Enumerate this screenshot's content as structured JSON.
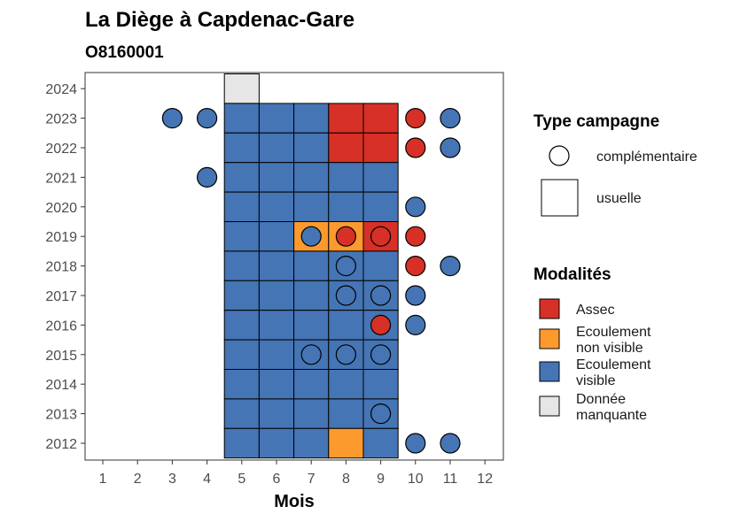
{
  "chart_data": {
    "type": "heatmap",
    "title": "La Diège à Capdenac-Gare",
    "subtitle": "O8160001",
    "xlabel": "Mois",
    "ylabel": "",
    "x_ticks": [
      "1",
      "2",
      "3",
      "4",
      "5",
      "6",
      "7",
      "8",
      "9",
      "10",
      "11",
      "12"
    ],
    "y_ticks": [
      "2012",
      "2013",
      "2014",
      "2015",
      "2016",
      "2017",
      "2018",
      "2019",
      "2020",
      "2021",
      "2022",
      "2023",
      "2024"
    ],
    "xlim": [
      1,
      12
    ],
    "ylim": [
      2012,
      2024
    ],
    "grid": false,
    "colors": {
      "assec": "#d73027",
      "non_visible": "#fd9a2e",
      "visible": "#4575b4",
      "missing": "#e6e6e6"
    },
    "tiles": [
      {
        "year": 2024,
        "month": 5,
        "mod": "missing"
      },
      {
        "year": 2023,
        "month": 5,
        "mod": "visible"
      },
      {
        "year": 2023,
        "month": 6,
        "mod": "visible"
      },
      {
        "year": 2023,
        "month": 7,
        "mod": "visible"
      },
      {
        "year": 2023,
        "month": 8,
        "mod": "assec"
      },
      {
        "year": 2023,
        "month": 9,
        "mod": "assec"
      },
      {
        "year": 2022,
        "month": 5,
        "mod": "visible"
      },
      {
        "year": 2022,
        "month": 6,
        "mod": "visible"
      },
      {
        "year": 2022,
        "month": 7,
        "mod": "visible"
      },
      {
        "year": 2022,
        "month": 8,
        "mod": "assec"
      },
      {
        "year": 2022,
        "month": 9,
        "mod": "assec"
      },
      {
        "year": 2021,
        "month": 5,
        "mod": "visible"
      },
      {
        "year": 2021,
        "month": 6,
        "mod": "visible"
      },
      {
        "year": 2021,
        "month": 7,
        "mod": "visible"
      },
      {
        "year": 2021,
        "month": 8,
        "mod": "visible"
      },
      {
        "year": 2021,
        "month": 9,
        "mod": "visible"
      },
      {
        "year": 2020,
        "month": 5,
        "mod": "visible"
      },
      {
        "year": 2020,
        "month": 6,
        "mod": "visible"
      },
      {
        "year": 2020,
        "month": 7,
        "mod": "visible"
      },
      {
        "year": 2020,
        "month": 8,
        "mod": "visible"
      },
      {
        "year": 2020,
        "month": 9,
        "mod": "visible"
      },
      {
        "year": 2019,
        "month": 5,
        "mod": "visible"
      },
      {
        "year": 2019,
        "month": 6,
        "mod": "visible"
      },
      {
        "year": 2019,
        "month": 7,
        "mod": "non_visible"
      },
      {
        "year": 2019,
        "month": 8,
        "mod": "non_visible"
      },
      {
        "year": 2019,
        "month": 9,
        "mod": "assec"
      },
      {
        "year": 2018,
        "month": 5,
        "mod": "visible"
      },
      {
        "year": 2018,
        "month": 6,
        "mod": "visible"
      },
      {
        "year": 2018,
        "month": 7,
        "mod": "visible"
      },
      {
        "year": 2018,
        "month": 8,
        "mod": "visible"
      },
      {
        "year": 2018,
        "month": 9,
        "mod": "visible"
      },
      {
        "year": 2017,
        "month": 5,
        "mod": "visible"
      },
      {
        "year": 2017,
        "month": 6,
        "mod": "visible"
      },
      {
        "year": 2017,
        "month": 7,
        "mod": "visible"
      },
      {
        "year": 2017,
        "month": 8,
        "mod": "visible"
      },
      {
        "year": 2017,
        "month": 9,
        "mod": "visible"
      },
      {
        "year": 2016,
        "month": 5,
        "mod": "visible"
      },
      {
        "year": 2016,
        "month": 6,
        "mod": "visible"
      },
      {
        "year": 2016,
        "month": 7,
        "mod": "visible"
      },
      {
        "year": 2016,
        "month": 8,
        "mod": "visible"
      },
      {
        "year": 2016,
        "month": 9,
        "mod": "visible"
      },
      {
        "year": 2015,
        "month": 5,
        "mod": "visible"
      },
      {
        "year": 2015,
        "month": 6,
        "mod": "visible"
      },
      {
        "year": 2015,
        "month": 7,
        "mod": "visible"
      },
      {
        "year": 2015,
        "month": 8,
        "mod": "visible"
      },
      {
        "year": 2015,
        "month": 9,
        "mod": "visible"
      },
      {
        "year": 2014,
        "month": 5,
        "mod": "visible"
      },
      {
        "year": 2014,
        "month": 6,
        "mod": "visible"
      },
      {
        "year": 2014,
        "month": 7,
        "mod": "visible"
      },
      {
        "year": 2014,
        "month": 8,
        "mod": "visible"
      },
      {
        "year": 2014,
        "month": 9,
        "mod": "visible"
      },
      {
        "year": 2013,
        "month": 5,
        "mod": "visible"
      },
      {
        "year": 2013,
        "month": 6,
        "mod": "visible"
      },
      {
        "year": 2013,
        "month": 7,
        "mod": "visible"
      },
      {
        "year": 2013,
        "month": 8,
        "mod": "visible"
      },
      {
        "year": 2013,
        "month": 9,
        "mod": "visible"
      },
      {
        "year": 2012,
        "month": 5,
        "mod": "visible"
      },
      {
        "year": 2012,
        "month": 6,
        "mod": "visible"
      },
      {
        "year": 2012,
        "month": 7,
        "mod": "visible"
      },
      {
        "year": 2012,
        "month": 8,
        "mod": "non_visible"
      },
      {
        "year": 2012,
        "month": 9,
        "mod": "visible"
      }
    ],
    "points": [
      {
        "year": 2023,
        "month": 3,
        "mod": "visible"
      },
      {
        "year": 2023,
        "month": 4,
        "mod": "visible"
      },
      {
        "year": 2023,
        "month": 10,
        "mod": "assec"
      },
      {
        "year": 2023,
        "month": 11,
        "mod": "visible"
      },
      {
        "year": 2022,
        "month": 10,
        "mod": "assec"
      },
      {
        "year": 2022,
        "month": 11,
        "mod": "visible"
      },
      {
        "year": 2021,
        "month": 4,
        "mod": "visible"
      },
      {
        "year": 2020,
        "month": 10,
        "mod": "visible"
      },
      {
        "year": 2019,
        "month": 7,
        "mod": "visible"
      },
      {
        "year": 2019,
        "month": 8,
        "mod": "assec"
      },
      {
        "year": 2019,
        "month": 9,
        "mod": "assec"
      },
      {
        "year": 2019,
        "month": 10,
        "mod": "assec"
      },
      {
        "year": 2018,
        "month": 8,
        "mod": "visible"
      },
      {
        "year": 2018,
        "month": 10,
        "mod": "assec"
      },
      {
        "year": 2018,
        "month": 11,
        "mod": "visible"
      },
      {
        "year": 2017,
        "month": 8,
        "mod": "visible"
      },
      {
        "year": 2017,
        "month": 9,
        "mod": "visible"
      },
      {
        "year": 2017,
        "month": 10,
        "mod": "visible"
      },
      {
        "year": 2016,
        "month": 9,
        "mod": "assec"
      },
      {
        "year": 2016,
        "month": 10,
        "mod": "visible"
      },
      {
        "year": 2015,
        "month": 7,
        "mod": "visible"
      },
      {
        "year": 2015,
        "month": 8,
        "mod": "visible"
      },
      {
        "year": 2015,
        "month": 9,
        "mod": "visible"
      },
      {
        "year": 2013,
        "month": 9,
        "mod": "visible"
      },
      {
        "year": 2012,
        "month": 10,
        "mod": "visible"
      },
      {
        "year": 2012,
        "month": 11,
        "mod": "visible"
      }
    ],
    "legend": {
      "placement": "right",
      "type_title": "Type campagne",
      "type_items": [
        {
          "label": "complémentaire",
          "shape": "circle"
        },
        {
          "label": "usuelle",
          "shape": "square"
        }
      ],
      "mod_title": "Modalités",
      "mod_items": [
        {
          "key": "assec",
          "lines": [
            "Assec"
          ]
        },
        {
          "key": "non_visible",
          "lines": [
            "Ecoulement",
            "non visible"
          ]
        },
        {
          "key": "visible",
          "lines": [
            "Ecoulement",
            "visible"
          ]
        },
        {
          "key": "missing",
          "lines": [
            "Donnée",
            "manquante"
          ]
        }
      ]
    }
  }
}
